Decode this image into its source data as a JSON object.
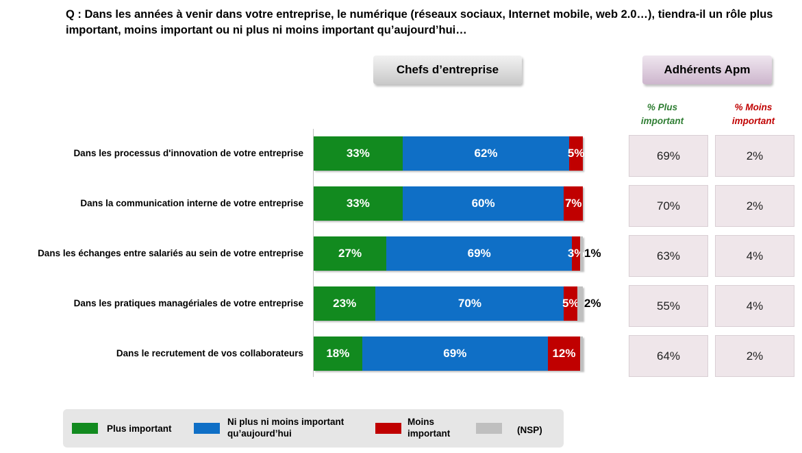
{
  "question": "Q : Dans les années à venir dans votre entreprise, le numérique (réseaux sociaux, Internet mobile, web 2.0…), tiendra-il un rôle plus important, moins important ou ni plus ni moins important qu’aujourd’hui…",
  "headers": {
    "chefs": "Chefs d’entreprise",
    "apm": "Adhérents Apm",
    "col_plus": "% Plus important",
    "col_moins": "% Moins important"
  },
  "colors": {
    "plus": "#128a1f",
    "ni": "#0f6fc6",
    "moins": "#c00000",
    "nsp": "#bfbfbf"
  },
  "legend": {
    "plus": "Plus important",
    "ni": "Ni plus ni moins important qu’aujourd’hui",
    "moins": "Moins important",
    "nsp": "(NSP)"
  },
  "chart_data": {
    "type": "bar",
    "orientation": "horizontal",
    "stacked": true,
    "categories": [
      "Dans les processus d'innovation de votre entreprise",
      "Dans la communication interne de votre entreprise",
      "Dans les échanges entre salariés au sein de votre entreprise",
      "Dans les pratiques managériales de votre entreprise",
      "Dans le recrutement de vos collaborateurs"
    ],
    "series": [
      {
        "name": "Plus important",
        "values": [
          33,
          33,
          27,
          23,
          18
        ],
        "labels": [
          "33%",
          "33%",
          "27%",
          "23%",
          "18%"
        ]
      },
      {
        "name": "Ni plus ni moins important qu’aujourd’hui",
        "values": [
          62,
          60,
          69,
          70,
          69
        ],
        "labels": [
          "62%",
          "60%",
          "69%",
          "70%",
          "69%"
        ]
      },
      {
        "name": "Moins important",
        "values": [
          5,
          7,
          3,
          5,
          12
        ],
        "labels": [
          "5%",
          "7%",
          "3%",
          "5%",
          "12%"
        ]
      },
      {
        "name": "(NSP)",
        "values": [
          0,
          0,
          1,
          2,
          1
        ],
        "labels": [
          "",
          "",
          "1%",
          "2%",
          ""
        ]
      }
    ],
    "xlim": [
      0,
      100
    ],
    "apm_table": {
      "plus_important": [
        "69%",
        "70%",
        "63%",
        "55%",
        "64%"
      ],
      "moins_important": [
        "2%",
        "2%",
        "4%",
        "4%",
        "2%"
      ]
    }
  }
}
